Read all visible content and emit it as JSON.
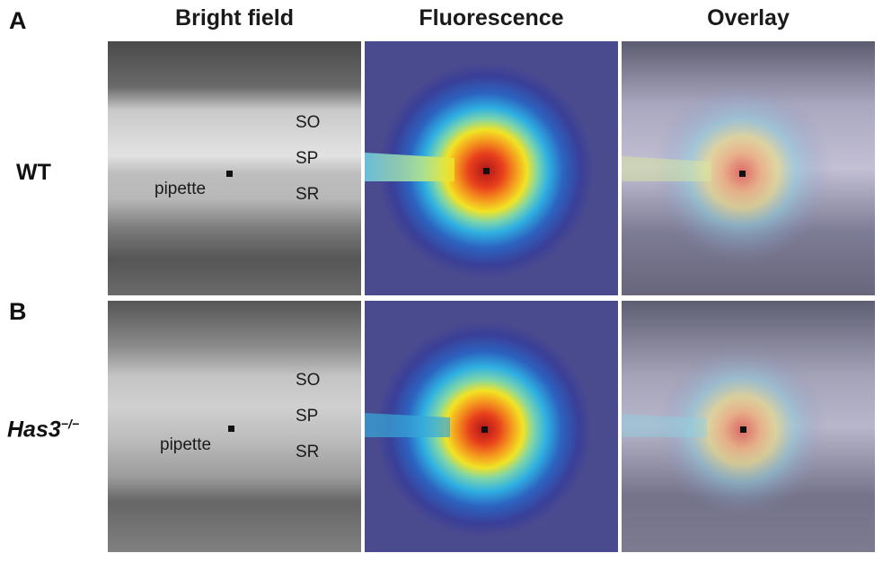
{
  "panels": [
    {
      "letter": "A",
      "row_label": "WT",
      "row_label_sup": ""
    },
    {
      "letter": "B",
      "row_label": "Has3",
      "row_label_sup": "−/−"
    }
  ],
  "columns": [
    "Bright field",
    "Fluorescence",
    "Overlay"
  ],
  "layer_labels": {
    "so": "SO",
    "sp": "SP",
    "sr": "SR"
  },
  "pipette_label": "pipette"
}
